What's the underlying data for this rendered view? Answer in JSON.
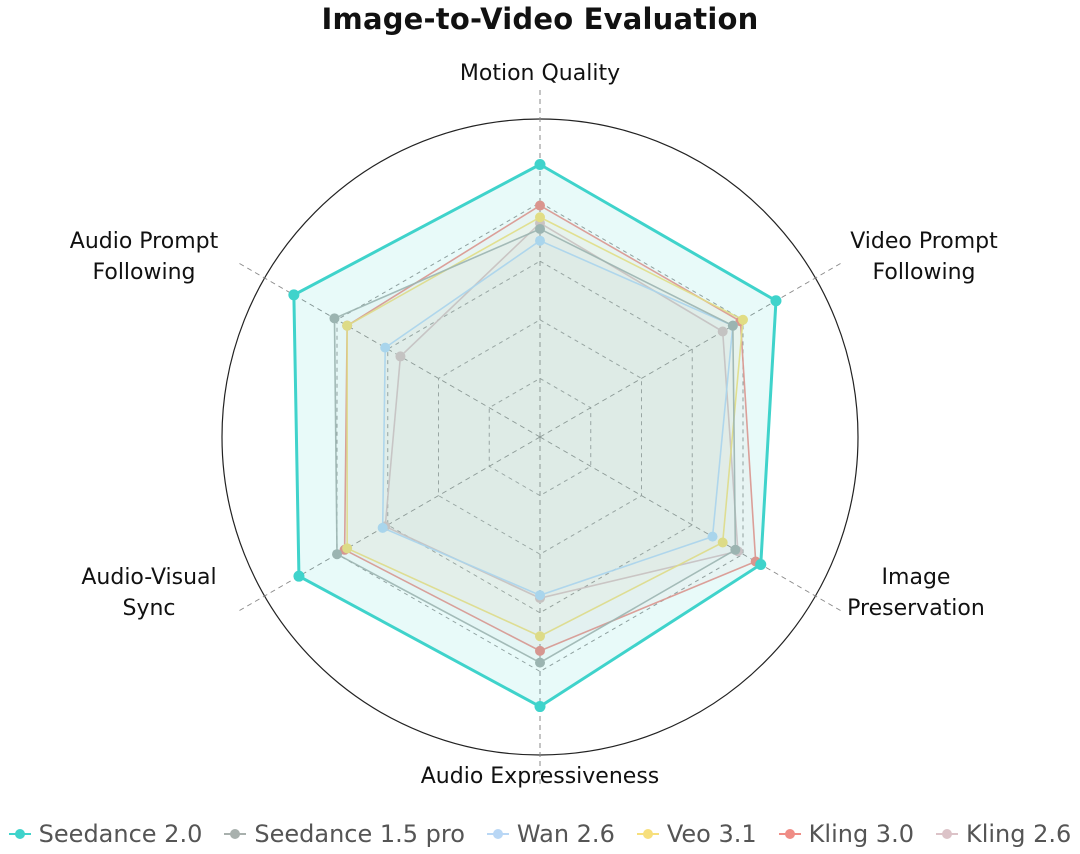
{
  "chart_data": {
    "type": "radar",
    "title": "Image-to-Video Evaluation",
    "axes": [
      "Motion Quality",
      "Video Prompt\nFollowing",
      "Image\nPreservation",
      "Audio Expressiveness",
      "Audio-Visual\nSync",
      "Audio Prompt\nFollowing"
    ],
    "range": [
      0,
      1
    ],
    "grid_levels": [
      0.2,
      0.4,
      0.6,
      0.8
    ],
    "legend_position": "bottom",
    "series": [
      {
        "name": "Seedance 2.0",
        "color": "#3fd3cb",
        "values": [
          0.93,
          0.93,
          0.87,
          0.92,
          0.95,
          0.97
        ]
      },
      {
        "name": "Seedance 1.5 pro",
        "color": "#a8b0ad",
        "values": [
          0.71,
          0.76,
          0.77,
          0.77,
          0.8,
          0.81
        ]
      },
      {
        "name": "Wan 2.6",
        "color": "#b9d7f5",
        "values": [
          0.67,
          0.76,
          0.68,
          0.54,
          0.62,
          0.61
        ]
      },
      {
        "name": "Veo 3.1",
        "color": "#f7df7c",
        "values": [
          0.75,
          0.8,
          0.72,
          0.68,
          0.76,
          0.76
        ]
      },
      {
        "name": "Kling 3.0",
        "color": "#ef8d86",
        "values": [
          0.79,
          0.79,
          0.85,
          0.73,
          0.77,
          0.76
        ]
      },
      {
        "name": "Kling 2.6",
        "color": "#dcc3c8",
        "values": [
          0.73,
          0.72,
          0.78,
          0.55,
          0.61,
          0.55
        ]
      }
    ]
  }
}
